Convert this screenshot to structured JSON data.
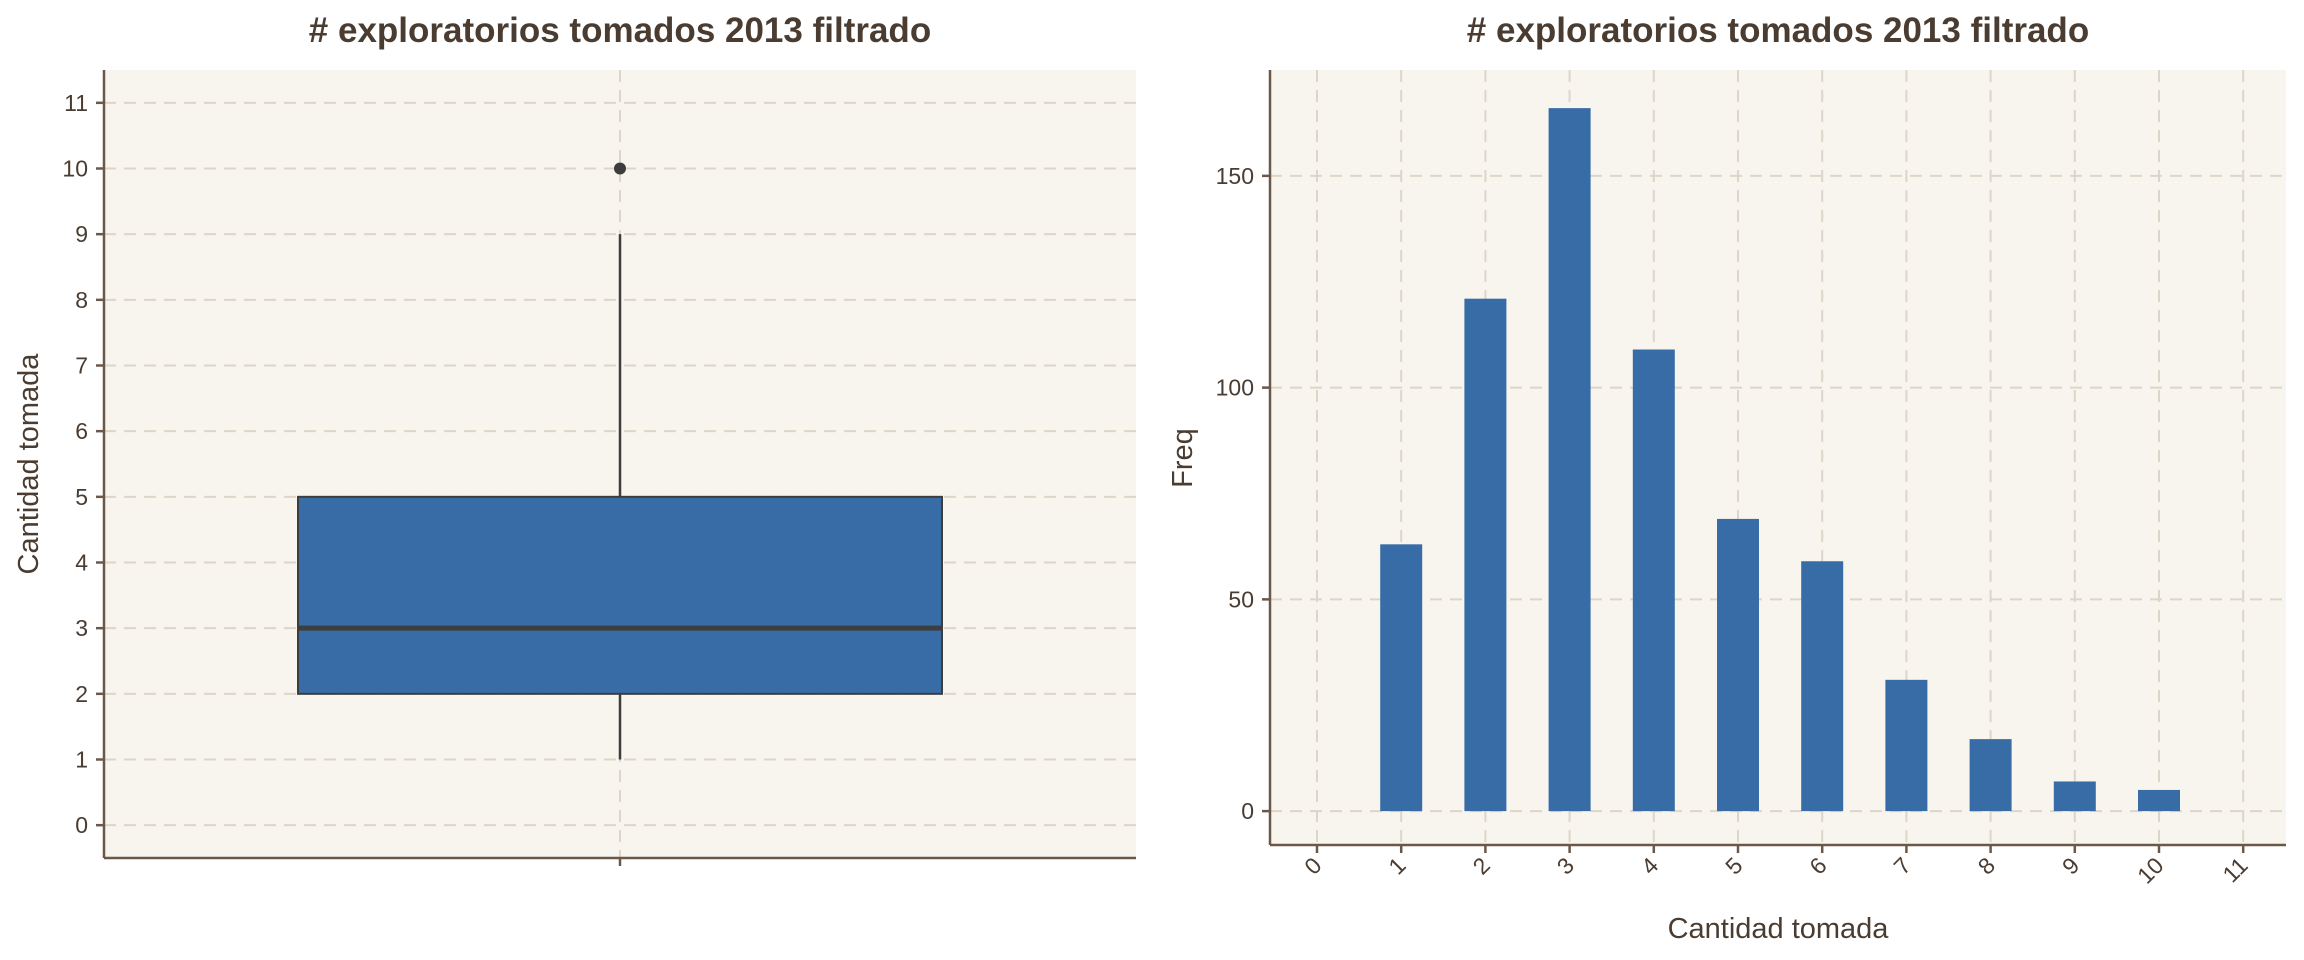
{
  "chart_data": [
    {
      "type": "box",
      "title": "# exploratorios tomados 2013 filtrado",
      "xlabel": "",
      "ylabel": "Cantidad tomada",
      "ylim": [
        -0.5,
        11.5
      ],
      "yticks": [
        0,
        1,
        2,
        3,
        4,
        5,
        6,
        7,
        8,
        9,
        10,
        11
      ],
      "box": {
        "min": 1,
        "q1": 2,
        "median": 3,
        "q3": 5,
        "max": 9
      },
      "outliers": [
        10
      ],
      "grid": true,
      "colors": {
        "fill": "#386ca6",
        "edge": "#3d3d3d",
        "background": "#f8f5ef"
      }
    },
    {
      "type": "bar",
      "title": "# exploratorios tomados 2013 filtrado",
      "xlabel": "Cantidad tomada",
      "ylabel": "Freq",
      "categories": [
        "0",
        "1",
        "2",
        "3",
        "4",
        "5",
        "6",
        "7",
        "8",
        "9",
        "10",
        "11"
      ],
      "values": [
        0,
        63,
        121,
        166,
        109,
        69,
        59,
        31,
        17,
        7,
        5,
        0
      ],
      "ylim": [
        -8,
        175
      ],
      "yticks": [
        0,
        50,
        100,
        150
      ],
      "grid": true,
      "colors": {
        "fill": "#386ca6",
        "background": "#f8f5ef"
      }
    }
  ]
}
